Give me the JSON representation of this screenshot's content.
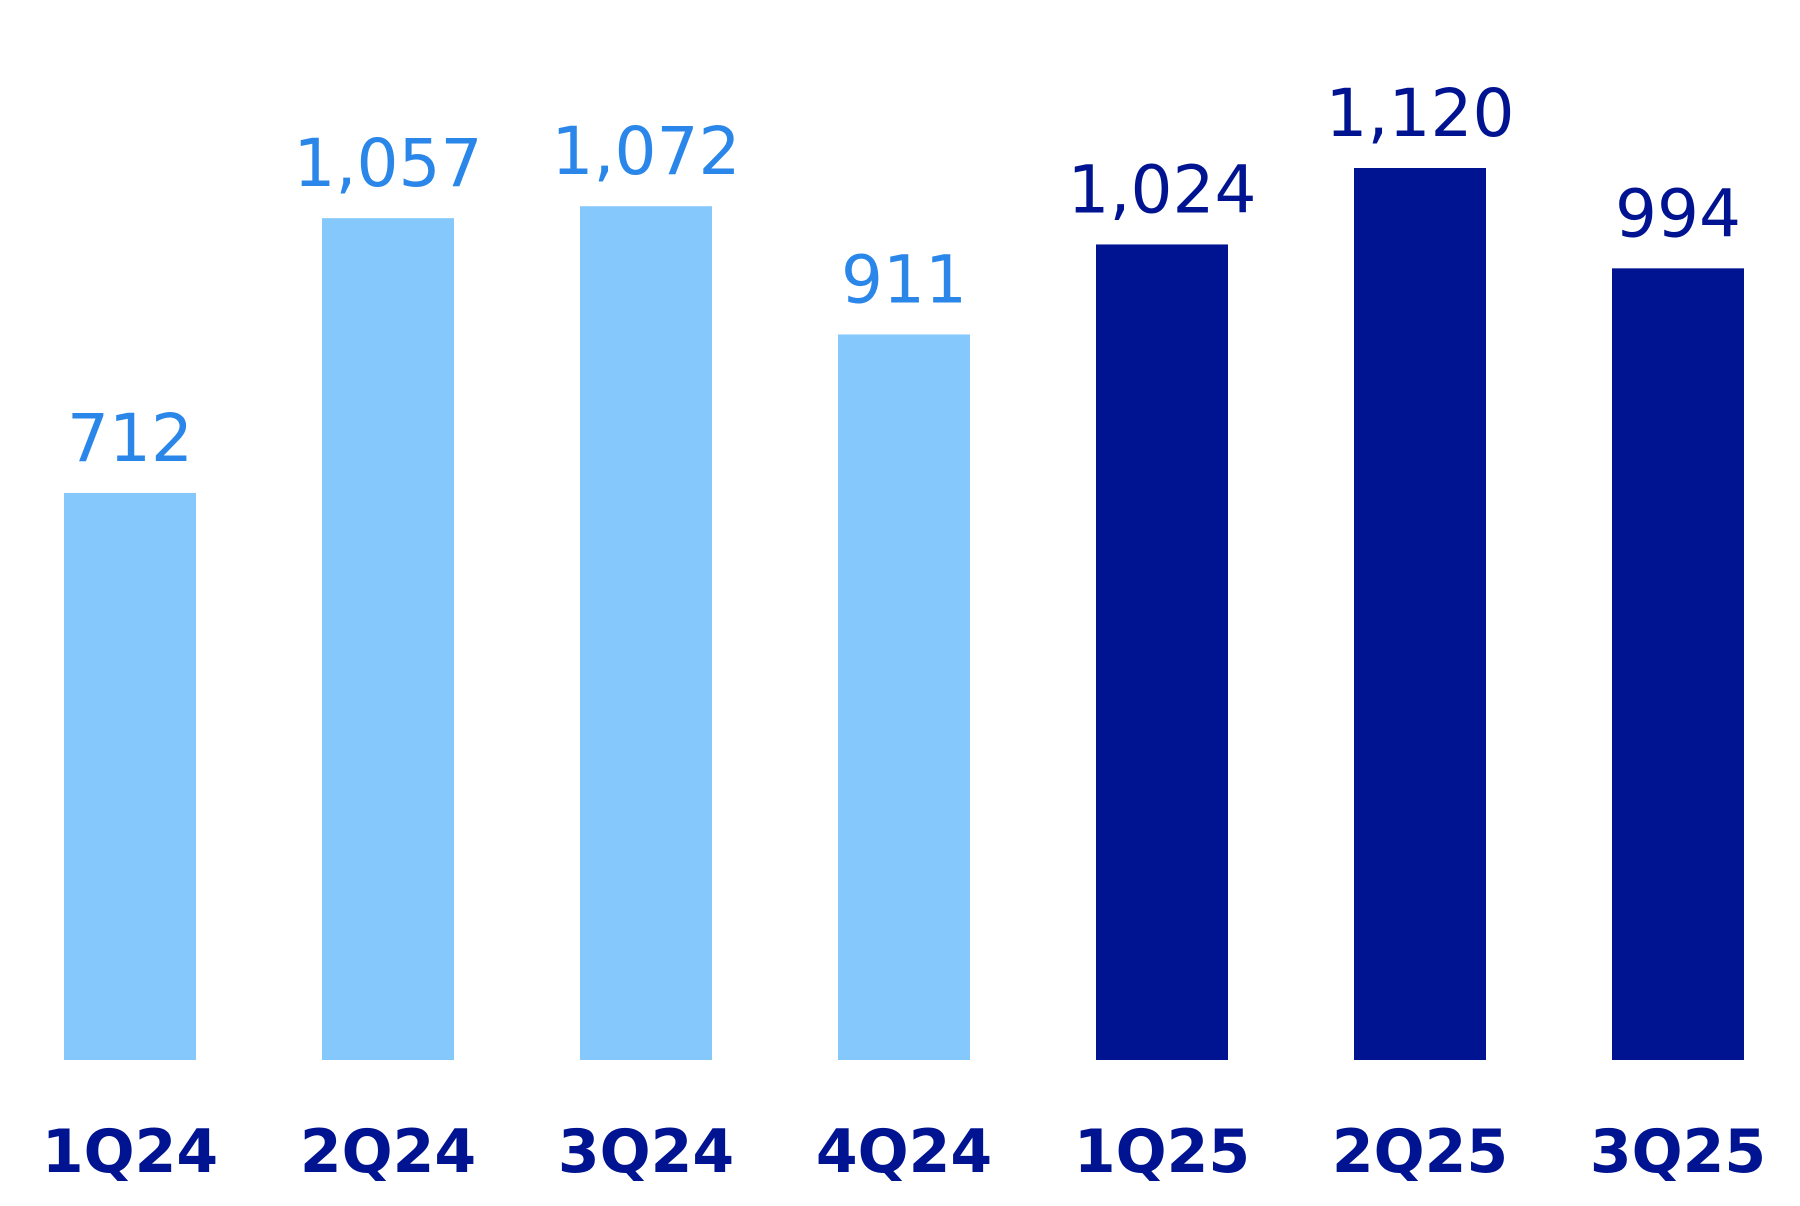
{
  "chart_data": {
    "type": "bar",
    "categories": [
      "1Q24",
      "2Q24",
      "3Q24",
      "4Q24",
      "1Q25",
      "2Q25",
      "3Q25"
    ],
    "values": [
      712,
      1057,
      1072,
      911,
      1024,
      1120,
      994
    ],
    "value_labels": [
      "712",
      "1,057",
      "1,072",
      "911",
      "1,024",
      "1,120",
      "994"
    ],
    "title": "",
    "xlabel": "",
    "ylabel": "",
    "grid": false,
    "legend": "none",
    "ylim": [
      0,
      1120
    ]
  },
  "colors": {
    "bar_2024": "#85c8fc",
    "label_2024": "#2a86e8",
    "bar_2025": "#001391",
    "label_2025": "#001391",
    "tick_label": "#001391"
  },
  "bar_palette": [
    "2024",
    "2024",
    "2024",
    "2024",
    "2025",
    "2025",
    "2025"
  ]
}
